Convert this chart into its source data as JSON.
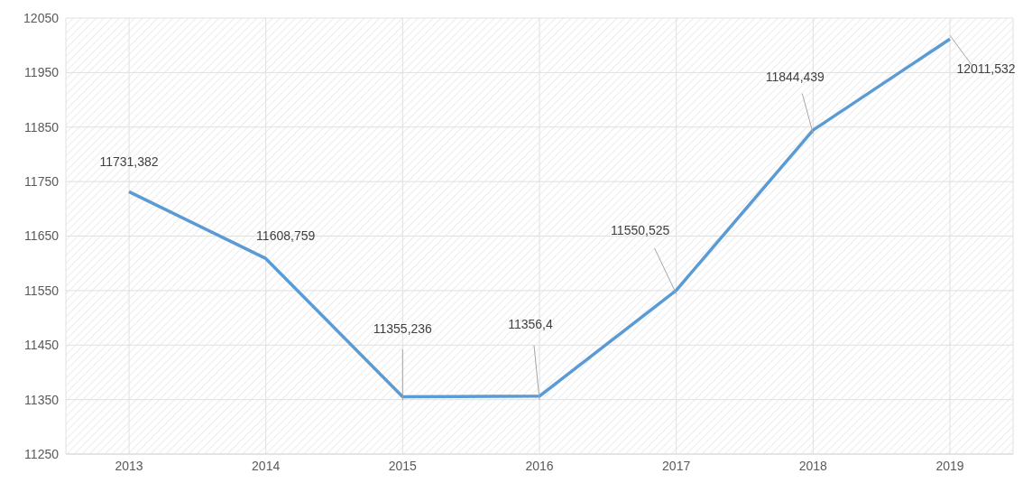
{
  "chart_data": {
    "type": "line",
    "categories": [
      "2013",
      "2014",
      "2015",
      "2016",
      "2017",
      "2018",
      "2019"
    ],
    "series": [
      {
        "color": "#5b9bd5",
        "values": [
          11731.382,
          11608.759,
          11355.236,
          11356.4,
          11550.525,
          11844.439,
          12011.532
        ],
        "value_labels": [
          "11731,382",
          "11608,759",
          "11355,236",
          "11356,4",
          "11550,525",
          "11844,439",
          "12011,532"
        ]
      }
    ],
    "ylim": [
      11250,
      12050
    ],
    "yticks": [
      11250,
      11350,
      11450,
      11550,
      11650,
      11750,
      11850,
      11950,
      12050
    ],
    "grid": true,
    "legend": false,
    "marker": "none",
    "line_style": "solid"
  }
}
